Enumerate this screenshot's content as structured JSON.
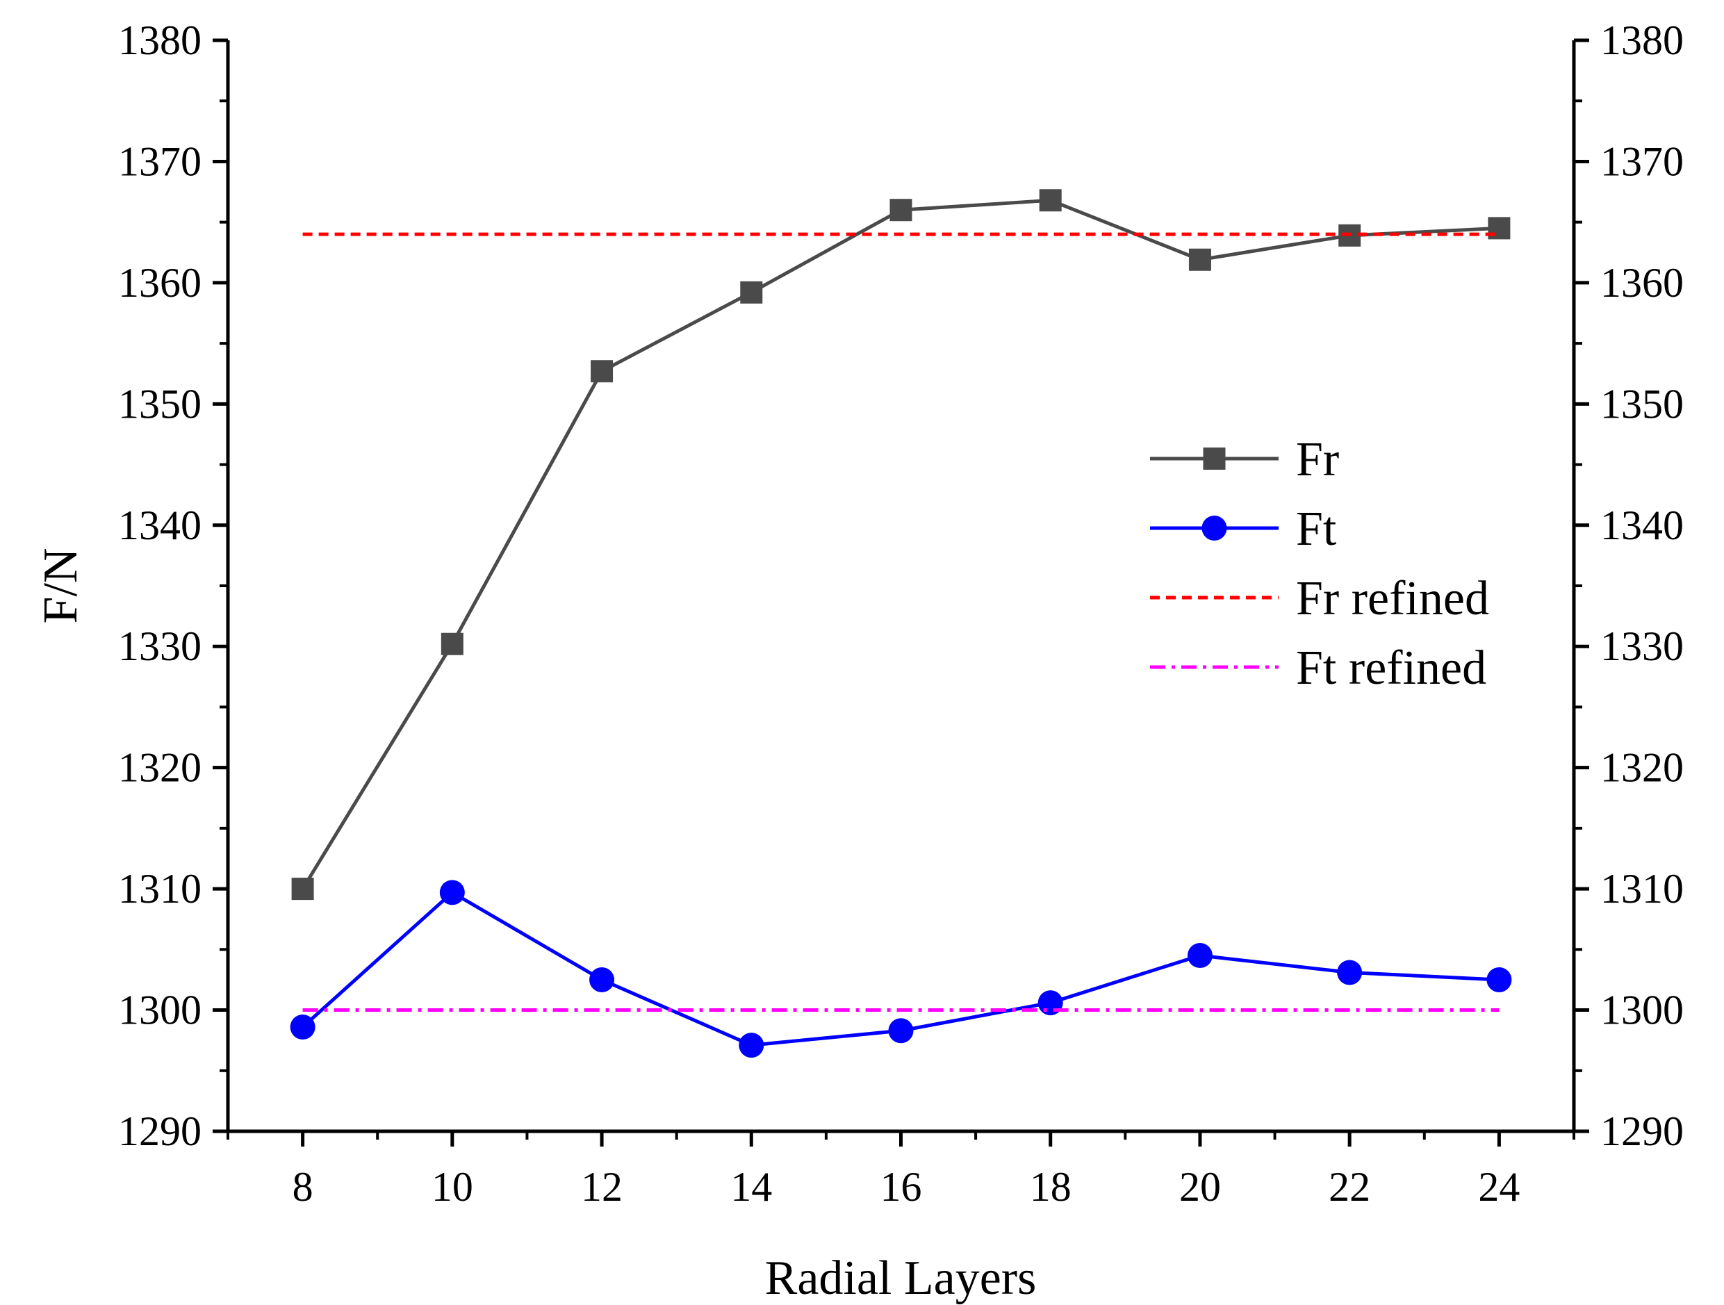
{
  "chart_data": {
    "type": "line",
    "title": "",
    "xlabel": "Radial Layers",
    "ylabel": "F/N",
    "x": [
      8,
      10,
      12,
      14,
      16,
      18,
      20,
      22,
      24
    ],
    "xlim": [
      7,
      25
    ],
    "ylim": [
      1290,
      1380
    ],
    "x_ticks": [
      8,
      10,
      12,
      14,
      16,
      18,
      20,
      22,
      24
    ],
    "y_ticks": [
      1290,
      1300,
      1310,
      1320,
      1330,
      1340,
      1350,
      1360,
      1370,
      1380
    ],
    "right_axis_mirror": true,
    "grid": false,
    "legend_position": "center-right",
    "series": [
      {
        "name": "Fr",
        "color": "#4a4a4a",
        "marker": "square",
        "style": "solid",
        "values": [
          1310.0,
          1330.2,
          1352.7,
          1359.2,
          1366.0,
          1366.8,
          1361.9,
          1363.9,
          1364.5
        ]
      },
      {
        "name": "Ft",
        "color": "#0000ff",
        "marker": "circle",
        "style": "solid",
        "values": [
          1298.6,
          1309.7,
          1302.5,
          1297.1,
          1298.3,
          1300.6,
          1304.5,
          1303.1,
          1302.5
        ]
      },
      {
        "name": "Fr refined",
        "color": "#ff0000",
        "marker": "none",
        "style": "dotted",
        "x": [
          8,
          24
        ],
        "values": [
          1364.0,
          1364.0
        ]
      },
      {
        "name": "Ft refined",
        "color": "#ff00ff",
        "marker": "none",
        "style": "dashdot",
        "x": [
          8,
          24
        ],
        "values": [
          1300.0,
          1300.0
        ]
      }
    ]
  }
}
